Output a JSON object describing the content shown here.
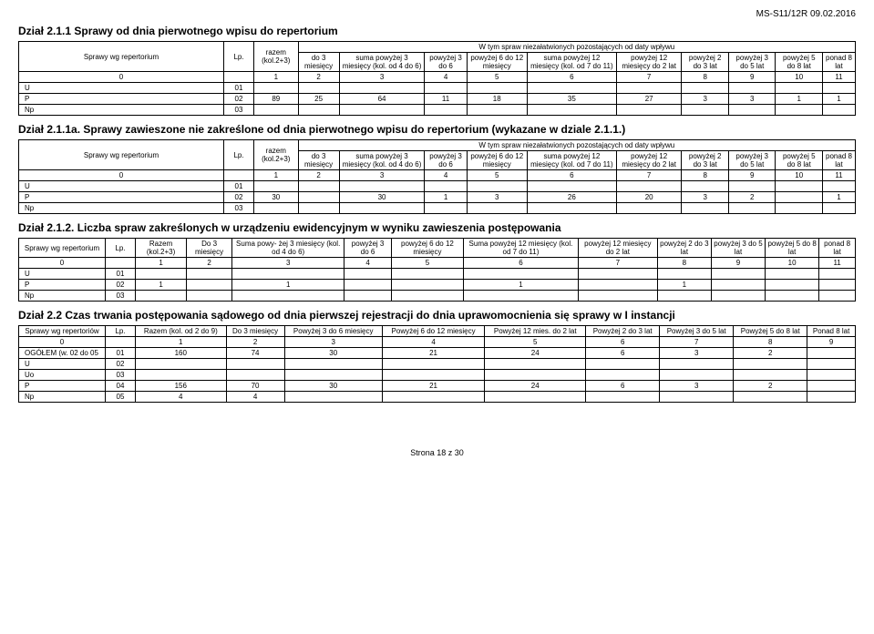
{
  "header_code": "MS-S11/12R 09.02.2016",
  "s211": {
    "title": "Dział 2.1.1 Sprawy od dnia pierwotnego wpisu do repertorium",
    "spanning": "W tym spraw niezałatwionych pozostających od daty wpływu",
    "cols": [
      "Sprawy wg repertorium",
      "Lp.",
      "razem (kol.2+3)",
      "do 3 miesięcy",
      "suma powyżej 3 miesięcy (kol. od 4 do 6)",
      "powyżej 3 do 6",
      "powyżej 6 do 12 miesięcy",
      "suma powyżej 12 miesięcy (kol. od 7 do 11)",
      "powyżej 12 miesięcy do 2 lat",
      "powyżej 2 do 3 lat",
      "powyżej 3 do 5 lat",
      "powyżej 5 do 8 lat",
      "ponad 8 lat"
    ],
    "idx": [
      "0",
      "",
      "1",
      "2",
      "3",
      "4",
      "5",
      "6",
      "7",
      "8",
      "9",
      "10",
      "11"
    ],
    "rows": [
      {
        "label": "U",
        "lp": "01",
        "vals": [
          "",
          "",
          "",
          "",
          "",
          "",
          "",
          "",
          "",
          "",
          ""
        ]
      },
      {
        "label": "P",
        "lp": "02",
        "vals": [
          "89",
          "25",
          "64",
          "11",
          "18",
          "35",
          "27",
          "3",
          "3",
          "1",
          "1"
        ]
      },
      {
        "label": "Np",
        "lp": "03",
        "vals": [
          "",
          "",
          "",
          "",
          "",
          "",
          "",
          "",
          "",
          "",
          ""
        ]
      }
    ]
  },
  "s211a": {
    "title": "Dział 2.1.1a. Sprawy zawieszone nie zakreślone od dnia pierwotnego wpisu do repertorium (wykazane w dziale 2.1.1.)",
    "spanning": "W tym spraw niezałatwionych pozostających od daty wpływu",
    "cols_same_as_211": true,
    "rows": [
      {
        "label": "U",
        "lp": "01",
        "vals": [
          "",
          "",
          "",
          "",
          "",
          "",
          "",
          "",
          "",
          "",
          ""
        ]
      },
      {
        "label": "P",
        "lp": "02",
        "vals": [
          "30",
          "",
          "30",
          "1",
          "3",
          "26",
          "20",
          "3",
          "2",
          "",
          "1"
        ]
      },
      {
        "label": "Np",
        "lp": "03",
        "vals": [
          "",
          "",
          "",
          "",
          "",
          "",
          "",
          "",
          "",
          "",
          ""
        ]
      }
    ]
  },
  "s212": {
    "title": "Dział 2.1.2. Liczba spraw zakreślonych w urządzeniu ewidencyjnym w wyniku zawieszenia postępowania",
    "cols": [
      "Sprawy wg repertorium",
      "Lp.",
      "Razem (kol.2+3)",
      "Do 3 miesięcy",
      "Suma powy- żej 3 miesięcy (kol. od 4 do 6)",
      "powyżej 3 do 6",
      "powyżej 6 do 12 miesięcy",
      "Suma powyżej 12 miesięcy (kol. od 7 do 11)",
      "powyżej 12 miesięcy do 2 lat",
      "powyżej 2 do 3 lat",
      "powyżej 3 do 5 lat",
      "powyżej 5 do 8 lat",
      "ponad 8 lat"
    ],
    "idx": [
      "0",
      "",
      "1",
      "2",
      "3",
      "4",
      "5",
      "6",
      "7",
      "8",
      "9",
      "10",
      "11"
    ],
    "rows": [
      {
        "label": "U",
        "lp": "01",
        "vals": [
          "",
          "",
          "",
          "",
          "",
          "",
          "",
          "",
          "",
          "",
          ""
        ]
      },
      {
        "label": "P",
        "lp": "02",
        "vals": [
          "1",
          "",
          "1",
          "",
          "",
          "1",
          "",
          "1",
          "",
          "",
          ""
        ]
      },
      {
        "label": "Np",
        "lp": "03",
        "vals": [
          "",
          "",
          "",
          "",
          "",
          "",
          "",
          "",
          "",
          "",
          ""
        ]
      }
    ]
  },
  "s22": {
    "title": "Dział 2.2 Czas trwania postępowania sądowego od dnia pierwszej rejestracji do dnia uprawomocnienia się sprawy w I instancji",
    "cols": [
      "Sprawy wg repertoriów",
      "Lp.",
      "Razem (kol. od 2 do 9)",
      "Do 3 miesięcy",
      "Powyżej 3 do 6 miesięcy",
      "Powyżej 6 do 12 miesięcy",
      "Powyżej 12 mies. do 2 lat",
      "Powyżej 2 do 3 lat",
      "Powyżej 3 do 5 lat",
      "Powyżej 5 do 8 lat",
      "Ponad 8 lat"
    ],
    "idx": [
      "0",
      "",
      "1",
      "2",
      "3",
      "4",
      "5",
      "6",
      "7",
      "8",
      "9"
    ],
    "rows": [
      {
        "label": "OGÓŁEM (w. 02 do 05",
        "lp": "01",
        "vals": [
          "160",
          "74",
          "30",
          "21",
          "24",
          "6",
          "3",
          "2",
          ""
        ]
      },
      {
        "label": "U",
        "lp": "02",
        "vals": [
          "",
          "",
          "",
          "",
          "",
          "",
          "",
          "",
          ""
        ]
      },
      {
        "label": "Uo",
        "lp": "03",
        "vals": [
          "",
          "",
          "",
          "",
          "",
          "",
          "",
          "",
          ""
        ]
      },
      {
        "label": "P",
        "lp": "04",
        "vals": [
          "156",
          "70",
          "30",
          "21",
          "24",
          "6",
          "3",
          "2",
          ""
        ]
      },
      {
        "label": "Np",
        "lp": "05",
        "vals": [
          "4",
          "4",
          "",
          "",
          "",
          "",
          "",
          "",
          ""
        ]
      }
    ]
  },
  "footer": "Strona 18 z 30"
}
